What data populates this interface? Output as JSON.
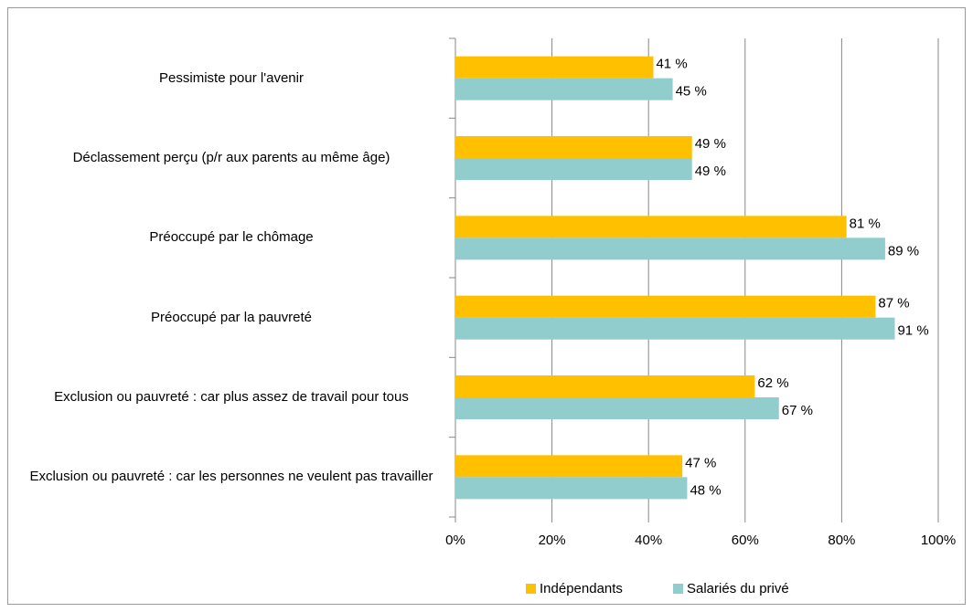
{
  "chart_data": {
    "type": "hbar",
    "categories": [
      "Pessimiste pour l'avenir",
      "Déclassement perçu (p/r aux parents au même âge)",
      "Préoccupé par le chômage",
      "Préoccupé par la pauvreté",
      "Exclusion ou pauvreté : car plus assez de travail pour tous",
      "Exclusion ou pauvreté : car les personnes ne veulent pas travailler"
    ],
    "series": [
      {
        "name": "Indépendants",
        "color": "#FFC000",
        "values": [
          41,
          49,
          81,
          87,
          62,
          47
        ],
        "value_labels": [
          "41 %",
          "49 %",
          "81 %",
          "87 %",
          "62 %",
          "47 %"
        ]
      },
      {
        "name": "Salariés du privé",
        "color": "#92CDCD",
        "values": [
          45,
          49,
          89,
          91,
          67,
          48
        ],
        "value_labels": [
          "45 %",
          "49 %",
          "89 %",
          "91 %",
          "67 %",
          "48 %"
        ]
      }
    ],
    "xlim": [
      0,
      100
    ],
    "xticks": [
      {
        "value": 0,
        "label": "0%"
      },
      {
        "value": 20,
        "label": "20%"
      },
      {
        "value": 40,
        "label": "40%"
      },
      {
        "value": 60,
        "label": "60%"
      },
      {
        "value": 80,
        "label": "80%"
      },
      {
        "value": 100,
        "label": "100%"
      }
    ],
    "grid": true,
    "legend": "bottom"
  }
}
